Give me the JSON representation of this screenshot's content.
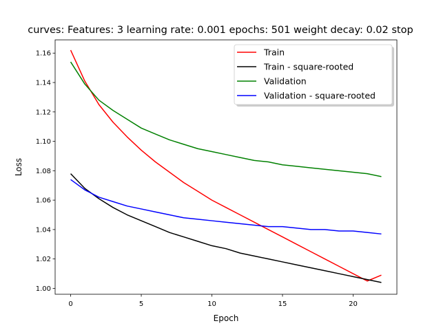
{
  "chart_data": {
    "type": "line",
    "title": "curves: Features: 3 learning rate: 0.001 epochs: 501 weight decay: 0.02 stop",
    "xlabel": "Epoch",
    "ylabel": "Loss",
    "xlim": [
      -1.1,
      23.1
    ],
    "ylim": [
      0.996,
      1.169
    ],
    "xticks": [
      0,
      5,
      10,
      15,
      20
    ],
    "yticks": [
      1.0,
      1.02,
      1.04,
      1.06,
      1.08,
      1.1,
      1.12,
      1.14,
      1.16
    ],
    "grid": false,
    "legend_position": "top-right",
    "x": [
      0,
      1,
      2,
      3,
      4,
      5,
      6,
      7,
      8,
      9,
      10,
      11,
      12,
      13,
      14,
      15,
      16,
      17,
      18,
      19,
      20,
      21,
      22
    ],
    "series": [
      {
        "name": "Train",
        "color": "#ff0000",
        "values": [
          1.162,
          1.141,
          1.125,
          1.113,
          1.103,
          1.094,
          1.086,
          1.079,
          1.072,
          1.066,
          1.06,
          1.055,
          1.05,
          1.045,
          1.04,
          1.035,
          1.03,
          1.025,
          1.02,
          1.015,
          1.01,
          1.005,
          1.009
        ]
      },
      {
        "name": "Train - square-rooted",
        "color": "#000000",
        "values": [
          1.078,
          1.068,
          1.061,
          1.055,
          1.05,
          1.046,
          1.042,
          1.038,
          1.035,
          1.032,
          1.029,
          1.027,
          1.024,
          1.022,
          1.02,
          1.018,
          1.016,
          1.014,
          1.012,
          1.01,
          1.008,
          1.006,
          1.004
        ]
      },
      {
        "name": "Validation",
        "color": "#008000",
        "values": [
          1.154,
          1.139,
          1.128,
          1.121,
          1.115,
          1.109,
          1.105,
          1.101,
          1.098,
          1.095,
          1.093,
          1.091,
          1.089,
          1.087,
          1.086,
          1.084,
          1.083,
          1.082,
          1.081,
          1.08,
          1.079,
          1.078,
          1.076
        ]
      },
      {
        "name": "Validation - square-rooted",
        "color": "#0000ff",
        "values": [
          1.074,
          1.067,
          1.062,
          1.059,
          1.056,
          1.054,
          1.052,
          1.05,
          1.048,
          1.047,
          1.046,
          1.045,
          1.044,
          1.043,
          1.042,
          1.042,
          1.041,
          1.04,
          1.04,
          1.039,
          1.039,
          1.038,
          1.037
        ]
      }
    ]
  }
}
